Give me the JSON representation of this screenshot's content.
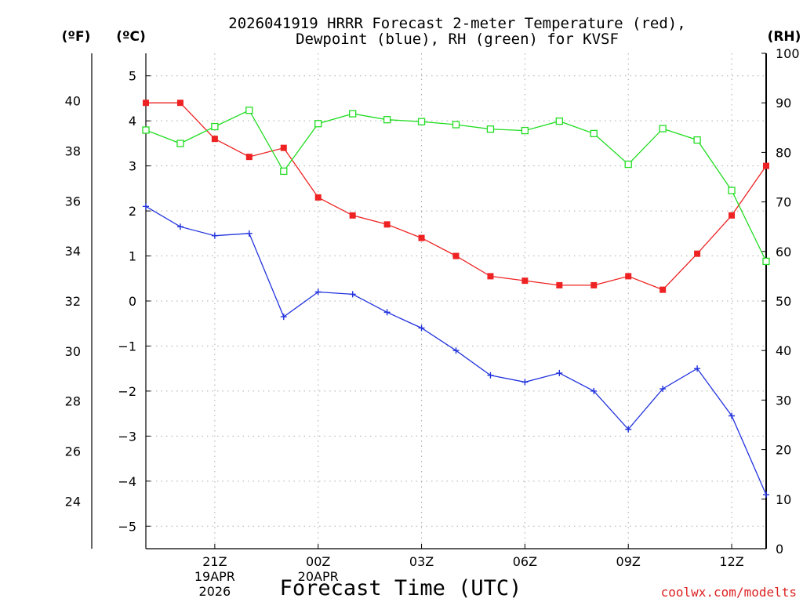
{
  "chart_data": {
    "type": "line",
    "title_line1": "2026041919 HRRR Forecast 2-meter Temperature (red),",
    "title_line2": "Dewpoint (blue), RH (green) for KVSF",
    "xlabel": "Forecast Time (UTC)",
    "watermark": "coolwx.com/modelts",
    "unit_labels": {
      "fahrenheit": "(ºF)",
      "celsius": "(ºC)",
      "rh": "(RH)"
    },
    "x": [
      19,
      20,
      21,
      22,
      23,
      24,
      25,
      26,
      27,
      28,
      29,
      30,
      31,
      32,
      33,
      34,
      35,
      36,
      37
    ],
    "xlim": [
      19,
      37
    ],
    "x_ticks": [
      {
        "x": 21,
        "label": "21Z",
        "date": "19APR",
        "year": "2026"
      },
      {
        "x": 24,
        "label": "00Z",
        "date": "20APR",
        "year": ""
      },
      {
        "x": 27,
        "label": "03Z",
        "date": "",
        "year": ""
      },
      {
        "x": 30,
        "label": "06Z",
        "date": "",
        "year": ""
      },
      {
        "x": 33,
        "label": "09Z",
        "date": "",
        "year": ""
      },
      {
        "x": 36,
        "label": "12Z",
        "date": "",
        "year": ""
      }
    ],
    "ylim_celsius": [
      -5.5,
      5.5
    ],
    "celsius_ticks": [
      "5",
      "4",
      "3",
      "2",
      "1",
      "0",
      "−1",
      "−2",
      "−3",
      "−4",
      "−5"
    ],
    "celsius_tick_values": [
      5,
      4,
      3,
      2,
      1,
      0,
      -1,
      -2,
      -3,
      -4,
      -5
    ],
    "fahrenheit_ticks": [
      "40",
      "38",
      "36",
      "34",
      "32",
      "30",
      "28",
      "26",
      "24"
    ],
    "fahrenheit_tick_values": [
      40,
      38,
      36,
      34,
      32,
      30,
      28,
      26,
      24
    ],
    "ylim_rh": [
      0,
      100
    ],
    "rh_ticks": [
      "100",
      "90",
      "80",
      "70",
      "60",
      "50",
      "40",
      "30",
      "20",
      "10",
      "0"
    ],
    "rh_tick_values": [
      100,
      90,
      80,
      70,
      60,
      50,
      40,
      30,
      20,
      10,
      0
    ],
    "series": [
      {
        "name": "Temperature",
        "axis": "celsius",
        "color": "#ee2222",
        "marker": "filled-square",
        "values": [
          4.4,
          4.4,
          3.6,
          3.2,
          3.4,
          2.3,
          1.9,
          1.7,
          1.4,
          1.0,
          0.55,
          0.45,
          0.35,
          0.35,
          0.55,
          0.25,
          1.05,
          1.9,
          3.0
        ]
      },
      {
        "name": "Dewpoint",
        "axis": "celsius",
        "color": "#2233dd",
        "marker": "plus",
        "values": [
          2.1,
          1.65,
          1.45,
          1.5,
          -0.35,
          0.2,
          0.15,
          -0.25,
          -0.6,
          -1.1,
          -1.65,
          -1.8,
          -1.6,
          -2.0,
          -2.85,
          -1.95,
          -1.5,
          -2.55,
          -4.3
        ]
      },
      {
        "name": "RH",
        "axis": "rh",
        "color": "#22dd22",
        "marker": "open-square",
        "values": [
          84.5,
          81.8,
          85.2,
          88.5,
          76.2,
          85.8,
          87.8,
          86.6,
          86.2,
          85.6,
          84.7,
          84.4,
          86.3,
          83.8,
          77.6,
          84.8,
          82.5,
          72.3,
          58.0
        ]
      }
    ]
  }
}
